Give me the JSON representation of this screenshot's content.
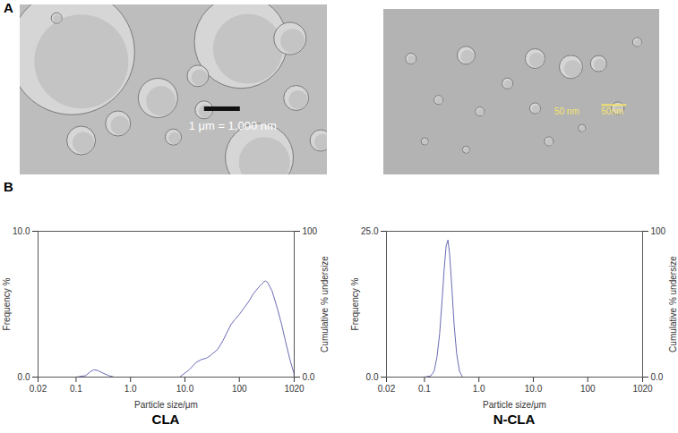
{
  "panels": [
    "A",
    "B"
  ],
  "images": [
    {
      "scale_bar_labels": [
        "1 μm = 1,000 nm"
      ]
    },
    {
      "scale_bar_labels": [
        "50 nm",
        "50nm"
      ]
    }
  ],
  "chart_data": [
    {
      "type": "line",
      "title": "CLA",
      "xlabel": "Particle size/μm",
      "ylabel": "Frequency %",
      "y2label": "Cumulative % undersize",
      "log": "x",
      "grid": false,
      "color": "#6b6bb5",
      "x": [
        0.02,
        0.1,
        0.15,
        0.18,
        0.21,
        0.25,
        0.3,
        0.4,
        0.5,
        1,
        5,
        8,
        12,
        16,
        20,
        25,
        30,
        40,
        50,
        60,
        70,
        85,
        100,
        120,
        150,
        180,
        220,
        260,
        300,
        330,
        400,
        500,
        600,
        700,
        850,
        1000,
        1020
      ],
      "values": [
        0,
        0,
        0.1,
        0.35,
        0.5,
        0.45,
        0.3,
        0.1,
        0,
        0,
        0,
        0,
        0.5,
        1.0,
        1.2,
        1.3,
        1.5,
        1.9,
        2.5,
        3.1,
        3.6,
        4.0,
        4.3,
        4.7,
        5.2,
        5.7,
        6.1,
        6.4,
        6.6,
        6.5,
        5.9,
        4.7,
        3.6,
        2.5,
        1.2,
        0.3,
        0
      ],
      "xlim": [
        0.02,
        1020
      ],
      "xticks": [
        0.02,
        0.1,
        {
          "value": 1,
          "label": "1.0"
        },
        {
          "value": 10,
          "label": "10.0"
        },
        100,
        1020
      ],
      "ylim": [
        0,
        10
      ],
      "yticks": [
        {
          "value": 0,
          "label": "0.0"
        },
        {
          "value": 10,
          "label": "10.0"
        }
      ],
      "y2lim": [
        0,
        100
      ],
      "y2ticks": [
        {
          "value": 0,
          "label": "0.0"
        },
        100
      ]
    },
    {
      "type": "line",
      "title": "N-CLA",
      "xlabel": "Particle size/μm",
      "ylabel": "Frequency %",
      "y2label": "Cumulative % undersize",
      "log": "x",
      "grid": false,
      "color": "#6b6bb5",
      "x": [
        0.02,
        0.1,
        0.13,
        0.15,
        0.17,
        0.19,
        0.21,
        0.23,
        0.25,
        0.27,
        0.29,
        0.32,
        0.35,
        0.39,
        0.44,
        0.5,
        1,
        10,
        100,
        1020
      ],
      "values": [
        0,
        0,
        0.2,
        1.0,
        3.5,
        7.5,
        13,
        18.5,
        22.5,
        23.5,
        21,
        15,
        9,
        4,
        1,
        0,
        0,
        0,
        0,
        0
      ],
      "xlim": [
        0.02,
        1020
      ],
      "xticks": [
        0.02,
        0.1,
        {
          "value": 1,
          "label": "1.0"
        },
        {
          "value": 10,
          "label": "10.0"
        },
        100,
        1020
      ],
      "ylim": [
        0,
        25
      ],
      "yticks": [
        {
          "value": 0,
          "label": "0.0"
        },
        {
          "value": 25,
          "label": "25.0"
        }
      ],
      "y2lim": [
        0,
        100
      ],
      "y2ticks": [
        {
          "value": 0,
          "label": "0.0"
        },
        100
      ]
    }
  ]
}
